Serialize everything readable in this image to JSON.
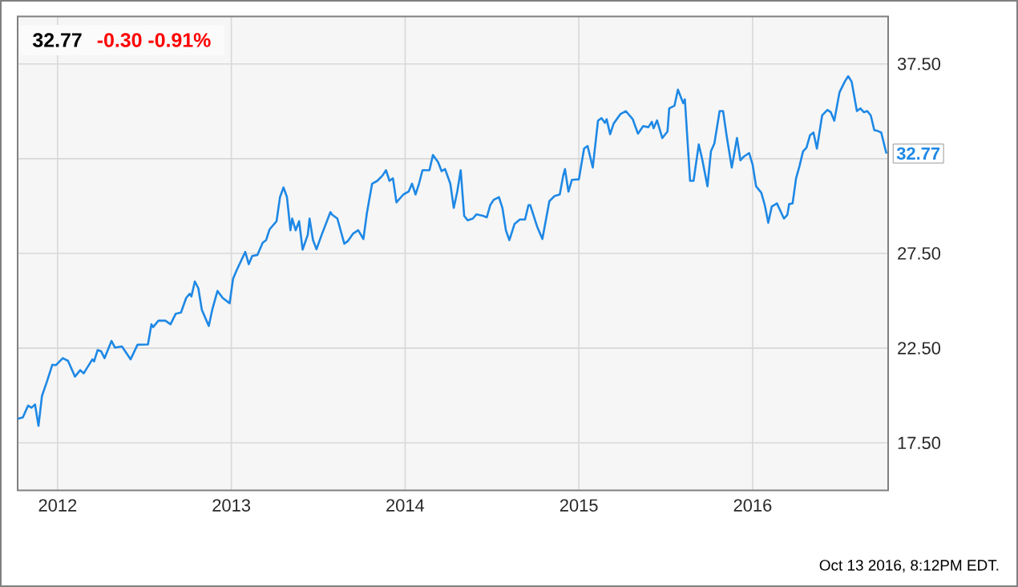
{
  "chart_data": {
    "type": "line",
    "title": "32.77",
    "subtitle": "-0.30  -0.91%",
    "x": [
      2011.77,
      2011.8,
      2011.83,
      2011.85,
      2011.87,
      2011.89,
      2011.91,
      2011.94,
      2011.97,
      2011.99,
      2012.03,
      2012.06,
      2012.1,
      2012.13,
      2012.15,
      2012.2,
      2012.21,
      2012.23,
      2012.25,
      2012.27,
      2012.31,
      2012.33,
      2012.37,
      2012.42,
      2012.46,
      2012.52,
      2012.54,
      2012.55,
      2012.58,
      2012.62,
      2012.65,
      2012.68,
      2012.71,
      2012.74,
      2012.76,
      2012.77,
      2012.79,
      2012.81,
      2012.83,
      2012.87,
      2012.89,
      2012.92,
      2012.95,
      2012.99,
      2013.01,
      2013.03,
      2013.08,
      2013.1,
      2013.12,
      2013.15,
      2013.18,
      2013.2,
      2013.22,
      2013.26,
      2013.28,
      2013.3,
      2013.32,
      2013.34,
      2013.35,
      2013.37,
      2013.39,
      2013.41,
      2013.44,
      2013.45,
      2013.47,
      2013.49,
      2013.52,
      2013.57,
      2013.58,
      2013.61,
      2013.65,
      2013.67,
      2013.7,
      2013.73,
      2013.76,
      2013.78,
      2013.81,
      2013.84,
      2013.87,
      2013.89,
      2013.91,
      2013.93,
      2013.95,
      2013.99,
      2014.02,
      2014.04,
      2014.06,
      2014.08,
      2014.1,
      2014.14,
      2014.16,
      2014.19,
      2014.21,
      2014.23,
      2014.26,
      2014.28,
      2014.3,
      2014.32,
      2014.34,
      2014.36,
      2014.39,
      2014.41,
      2014.45,
      2014.47,
      2014.49,
      2014.51,
      2014.54,
      2014.56,
      2014.58,
      2014.6,
      2014.63,
      2014.66,
      2014.69,
      2014.71,
      2014.72,
      2014.76,
      2014.79,
      2014.83,
      2014.86,
      2014.89,
      2014.91,
      2014.92,
      2014.94,
      2014.96,
      2015.0,
      2015.03,
      2015.05,
      2015.08,
      2015.11,
      2015.13,
      2015.15,
      2015.16,
      2015.18,
      2015.2,
      2015.24,
      2015.27,
      2015.31,
      2015.34,
      2015.37,
      2015.4,
      2015.42,
      2015.43,
      2015.45,
      2015.48,
      2015.51,
      2015.52,
      2015.55,
      2015.57,
      2015.6,
      2015.61,
      2015.64,
      2015.66,
      2015.69,
      2015.71,
      2015.74,
      2015.76,
      2015.78,
      2015.81,
      2015.83,
      2015.85,
      2015.88,
      2015.91,
      2015.93,
      2015.95,
      2015.98,
      2016.0,
      2016.02,
      2016.05,
      2016.07,
      2016.09,
      2016.11,
      2016.14,
      2016.18,
      2016.2,
      2016.21,
      2016.23,
      2016.25,
      2016.27,
      2016.29,
      2016.31,
      2016.33,
      2016.35,
      2016.37,
      2016.4,
      2016.43,
      2016.45,
      2016.47,
      2016.5,
      2016.53,
      2016.55,
      2016.57,
      2016.6,
      2016.62,
      2016.64,
      2016.66,
      2016.68,
      2016.7,
      2016.72,
      2016.74,
      2016.77
    ],
    "series": [
      {
        "color": "#1e88e5",
        "values": [
          18.77,
          18.85,
          19.47,
          19.36,
          19.53,
          18.4,
          19.98,
          20.78,
          21.63,
          21.6,
          21.97,
          21.83,
          21.0,
          21.34,
          21.17,
          21.91,
          21.8,
          22.4,
          22.34,
          21.97,
          22.88,
          22.53,
          22.59,
          21.91,
          22.68,
          22.7,
          23.76,
          23.61,
          23.95,
          23.95,
          23.76,
          24.32,
          24.38,
          25.15,
          25.37,
          25.23,
          26.02,
          25.66,
          24.53,
          23.67,
          24.53,
          25.52,
          25.15,
          24.87,
          26.17,
          26.6,
          27.58,
          26.93,
          27.36,
          27.42,
          28.06,
          28.2,
          28.77,
          29.2,
          30.47,
          30.98,
          30.47,
          28.72,
          29.34,
          28.72,
          29.2,
          27.7,
          28.49,
          29.34,
          28.2,
          27.72,
          28.49,
          29.68,
          29.54,
          29.34,
          28.01,
          28.15,
          28.54,
          28.72,
          28.26,
          29.63,
          31.18,
          31.33,
          31.61,
          31.89,
          31.33,
          31.46,
          30.19,
          30.61,
          30.76,
          31.18,
          30.61,
          31.18,
          31.89,
          31.89,
          32.69,
          32.31,
          31.84,
          31.95,
          31.18,
          29.9,
          30.76,
          31.89,
          29.48,
          29.25,
          29.34,
          29.56,
          29.48,
          29.4,
          30.05,
          30.33,
          30.47,
          29.9,
          28.72,
          28.2,
          29.06,
          29.29,
          29.29,
          30.05,
          30.05,
          28.91,
          28.26,
          30.25,
          30.53,
          30.61,
          31.61,
          31.95,
          30.76,
          31.38,
          31.41,
          33.03,
          33.17,
          32.03,
          34.5,
          34.64,
          34.39,
          34.58,
          33.79,
          34.35,
          34.86,
          35.01,
          34.58,
          33.82,
          34.22,
          34.16,
          34.44,
          34.1,
          34.52,
          33.59,
          33.93,
          35.15,
          35.29,
          36.14,
          35.43,
          35.63,
          31.33,
          31.33,
          33.25,
          32.46,
          31.04,
          32.88,
          33.31,
          35.01,
          35.01,
          33.73,
          32.03,
          33.59,
          32.41,
          32.61,
          32.8,
          32.18,
          31.04,
          30.7,
          30.05,
          29.12,
          29.97,
          30.14,
          29.34,
          29.54,
          30.1,
          30.14,
          31.46,
          32.12,
          32.88,
          33.08,
          33.73,
          33.88,
          33.03,
          34.78,
          35.07,
          34.95,
          34.5,
          36.0,
          36.56,
          36.85,
          36.56,
          35.01,
          35.15,
          34.95,
          35.01,
          34.78,
          34.01,
          33.96,
          33.88,
          32.77
        ]
      }
    ],
    "xlim": [
      2011.77,
      2016.78
    ],
    "ylim": [
      15,
      40
    ],
    "xticks": [
      2012,
      2013,
      2014,
      2015,
      2016
    ],
    "yticks": [
      {
        "value": 17.5,
        "label": "17.50"
      },
      {
        "value": 22.5,
        "label": "22.50"
      },
      {
        "value": 27.5,
        "label": "27.50"
      },
      {
        "value": 32.5,
        "label": null
      },
      {
        "value": 37.5,
        "label": "37.50"
      }
    ],
    "grid": true,
    "marker": "none",
    "line_style": "solid",
    "annotations": [
      {
        "text": "32.77",
        "x": 2016.77,
        "y": 32.77
      },
      "Oct 13 2016, 8:12PM EDT."
    ]
  }
}
